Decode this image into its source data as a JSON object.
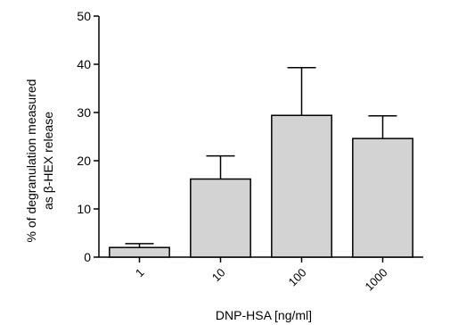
{
  "chart_data": {
    "type": "bar",
    "title": "",
    "xlabel": "DNP-HSA [ng/ml]",
    "ylabel": [
      "% of degranulation measured",
      "as β-HEX release"
    ],
    "categories": [
      "1",
      "10",
      "100",
      "1000"
    ],
    "values": [
      2.0,
      16.2,
      29.4,
      24.6
    ],
    "error_upper": [
      2.8,
      21.0,
      39.3,
      29.3
    ],
    "ylim": [
      0,
      50
    ],
    "yticks": [
      "0",
      "10",
      "20",
      "30",
      "40",
      "50"
    ],
    "grid": false,
    "legend": "none",
    "colors": {
      "bar_fill": "#d3d3d3",
      "stroke": "#000000"
    }
  }
}
